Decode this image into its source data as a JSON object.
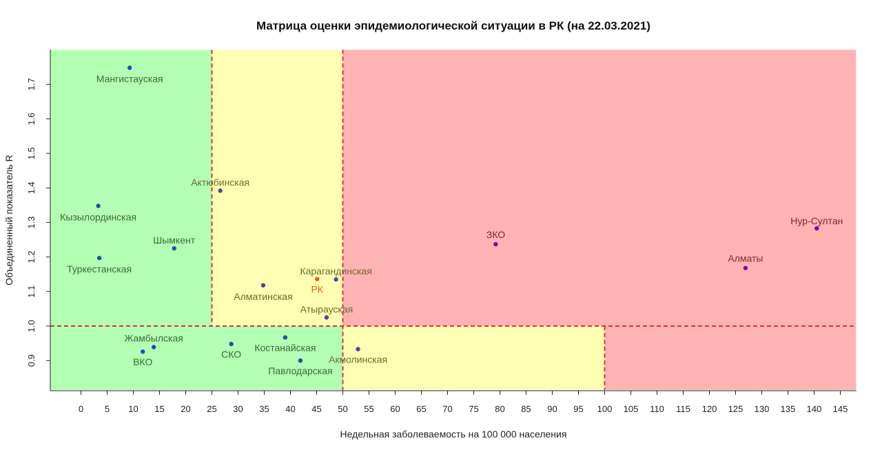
{
  "chart_data": {
    "type": "scatter",
    "title": "Матрица оценки эпидемиологической ситуации в РК (на 22.03.2021)",
    "xlabel": "Недельная заболеваемость на 100 000 населения",
    "ylabel": "Объединенный показатель R",
    "xlim": [
      -6,
      148
    ],
    "ylim": [
      0.815,
      1.8
    ],
    "x_ticks": [
      0,
      5,
      10,
      15,
      20,
      25,
      30,
      35,
      40,
      45,
      50,
      55,
      60,
      65,
      70,
      75,
      80,
      85,
      90,
      95,
      100,
      105,
      110,
      115,
      120,
      125,
      130,
      135,
      140,
      145
    ],
    "y_ticks": [
      0.9,
      1.0,
      1.1,
      1.2,
      1.3,
      1.4,
      1.5,
      1.6,
      1.7
    ],
    "grid": false,
    "zones": [
      {
        "x": [
          -6,
          25
        ],
        "y": [
          1.0,
          1.8
        ],
        "level": "green",
        "color": "#b3ffb3"
      },
      {
        "x": [
          25,
          50
        ],
        "y": [
          1.0,
          1.8
        ],
        "level": "yellow",
        "color": "#ffffb3"
      },
      {
        "x": [
          50,
          148
        ],
        "y": [
          1.0,
          1.8
        ],
        "level": "red",
        "color": "#ffb3b3"
      },
      {
        "x": [
          -6,
          50
        ],
        "y": [
          0.815,
          1.0
        ],
        "level": "green",
        "color": "#b3ffb3"
      },
      {
        "x": [
          50,
          100
        ],
        "y": [
          0.815,
          1.0
        ],
        "level": "yellow",
        "color": "#ffffb3"
      },
      {
        "x": [
          100,
          148
        ],
        "y": [
          0.815,
          1.0
        ],
        "level": "red",
        "color": "#ffb3b3"
      }
    ],
    "threshold_lines": [
      {
        "orient": "v",
        "x": 25,
        "y": [
          1.0,
          1.8
        ]
      },
      {
        "orient": "v",
        "x": 50,
        "y": [
          0.815,
          1.8
        ]
      },
      {
        "orient": "v",
        "x": 100,
        "y": [
          0.815,
          1.0
        ]
      },
      {
        "orient": "h",
        "y": 1.0,
        "x": [
          -6,
          148
        ]
      }
    ],
    "threshold_color": "#e03030",
    "points": [
      {
        "label": "Мангистауская",
        "x": 9.3,
        "y": 1.748,
        "color": "#1f4fb8",
        "label_color": "#3a6a3a"
      },
      {
        "label": "Актюбинская",
        "x": 26.6,
        "y": 1.392,
        "color": "#4a4a9a",
        "label_color": "#6b6b2a"
      },
      {
        "label": "Кызылординская",
        "x": 3.3,
        "y": 1.348,
        "color": "#1f4fb8",
        "label_color": "#3a6a3a"
      },
      {
        "label": "Шымкент",
        "x": 17.8,
        "y": 1.225,
        "color": "#1f4fb8",
        "label_color": "#3a6a3a"
      },
      {
        "label": "Туркестанская",
        "x": 3.5,
        "y": 1.197,
        "color": "#1f4fb8",
        "label_color": "#3a6a3a"
      },
      {
        "label": "Алматинская",
        "x": 34.8,
        "y": 1.118,
        "color": "#4a4a9a",
        "label_color": "#6b6b2a"
      },
      {
        "label": "Карагандинская",
        "x": 48.7,
        "y": 1.135,
        "color": "#4a4a9a",
        "label_color": "#6b6b2a"
      },
      {
        "label": "РК",
        "x": 45.1,
        "y": 1.136,
        "color": "#e86020",
        "label_color": "#e86020"
      },
      {
        "label": "Атырауская",
        "x": 46.9,
        "y": 1.025,
        "color": "#4a4a9a",
        "label_color": "#6b6b2a"
      },
      {
        "label": "ЗКО",
        "x": 79.2,
        "y": 1.237,
        "color": "#6a10b0",
        "label_color": "#7a2a2a"
      },
      {
        "label": "Алматы",
        "x": 126.9,
        "y": 1.168,
        "color": "#6a10b0",
        "label_color": "#7a2a2a"
      },
      {
        "label": "Нур-Султан",
        "x": 140.5,
        "y": 1.283,
        "color": "#6a10b0",
        "label_color": "#7a2a2a"
      },
      {
        "label": "Жамбылская",
        "x": 13.9,
        "y": 0.939,
        "color": "#1f4fb8",
        "label_color": "#3a6a3a"
      },
      {
        "label": "ВКО",
        "x": 11.8,
        "y": 0.926,
        "color": "#1f4fb8",
        "label_color": "#3a6a3a"
      },
      {
        "label": "СКО",
        "x": 28.7,
        "y": 0.948,
        "color": "#1f4fb8",
        "label_color": "#3a6a3a"
      },
      {
        "label": "Костанайская",
        "x": 39.0,
        "y": 0.967,
        "color": "#1f4fb8",
        "label_color": "#3a6a3a"
      },
      {
        "label": "Павлодарская",
        "x": 41.9,
        "y": 0.9,
        "color": "#1f4fb8",
        "label_color": "#3a6a3a"
      },
      {
        "label": "Акмолинская",
        "x": 52.9,
        "y": 0.933,
        "color": "#4a4a9a",
        "label_color": "#6b6b2a"
      }
    ]
  }
}
